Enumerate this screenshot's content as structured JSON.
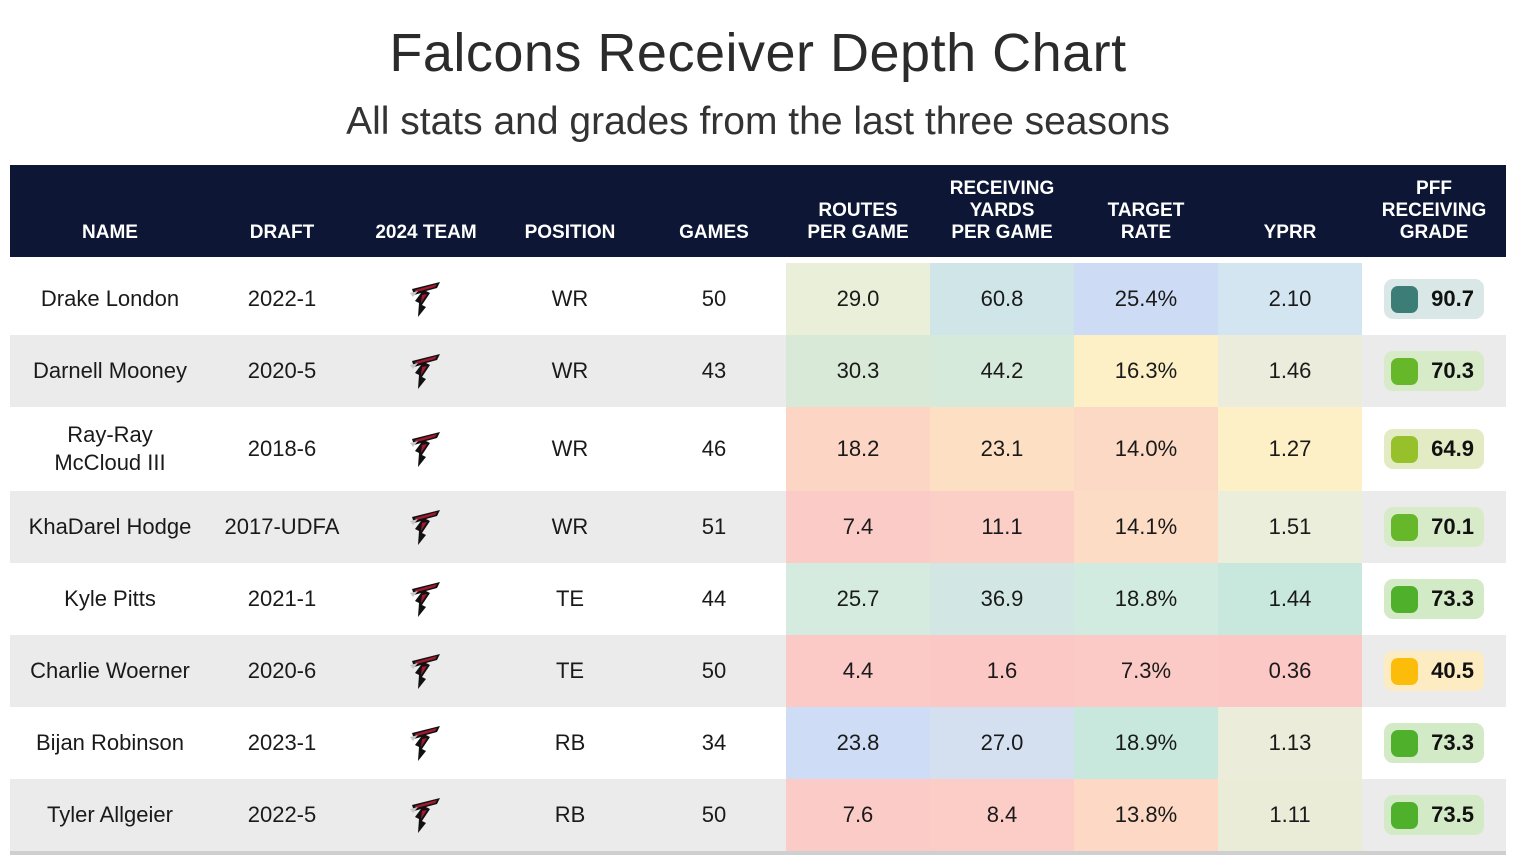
{
  "title": "Falcons Receiver Depth Chart",
  "subtitle": "All stats and grades from the last three seasons",
  "headers": {
    "name": "NAME",
    "draft": "DRAFT",
    "team": "2024 TEAM",
    "position": "POSITION",
    "games": "GAMES",
    "routes": "ROUTES\nPER GAME",
    "rec_yards": "RECEIVING\nYARDS\nPER GAME",
    "target_rate": "TARGET\nRATE",
    "yprr": "YPRR",
    "grade": "PFF\nRECEIVING\nGRADE"
  },
  "team_logo_icon": "falcons-logo-icon",
  "rows": [
    {
      "name": "Drake London",
      "draft": "2022-1",
      "position": "WR",
      "games": "50",
      "routes": "29.0",
      "rec_yards": "60.8",
      "target_rate": "25.4%",
      "yprr": "2.10",
      "grade": "90.7",
      "colors": {
        "routes": "#e9efd9",
        "rec_yards": "#cfe5e8",
        "target_rate": "#cddcf4",
        "yprr": "#d4e5f2",
        "grade_pill": "#d9e8e6",
        "grade_dot": "#3c7d78"
      }
    },
    {
      "name": "Darnell Mooney",
      "draft": "2020-5",
      "position": "WR",
      "games": "43",
      "routes": "30.3",
      "rec_yards": "44.2",
      "target_rate": "16.3%",
      "yprr": "1.46",
      "grade": "70.3",
      "colors": {
        "routes": "#d8ead7",
        "rec_yards": "#d6eadb",
        "target_rate": "#fdf0c7",
        "yprr": "#ececdc",
        "grade_pill": "#d8ebc8",
        "grade_dot": "#67b72a"
      }
    },
    {
      "name": "Ray-Ray\nMcCloud III",
      "draft": "2018-6",
      "position": "WR",
      "games": "46",
      "routes": "18.2",
      "rec_yards": "23.1",
      "target_rate": "14.0%",
      "yprr": "1.27",
      "grade": "64.9",
      "colors": {
        "routes": "#fcd5c5",
        "rec_yards": "#fde0c4",
        "target_rate": "#fcd9c5",
        "yprr": "#fdf0c7",
        "grade_pill": "#e2ebc4",
        "grade_dot": "#97c12a"
      }
    },
    {
      "name": "KhaDarel Hodge",
      "draft": "2017-UDFA",
      "position": "WR",
      "games": "51",
      "routes": "7.4",
      "rec_yards": "11.1",
      "target_rate": "14.1%",
      "yprr": "1.51",
      "grade": "70.1",
      "colors": {
        "routes": "#fbcbc7",
        "rec_yards": "#fbcfc6",
        "target_rate": "#fddcc5",
        "yprr": "#eaeedb",
        "grade_pill": "#d8ebc8",
        "grade_dot": "#67b72a"
      }
    },
    {
      "name": "Kyle Pitts",
      "draft": "2021-1",
      "position": "TE",
      "games": "44",
      "routes": "25.7",
      "rec_yards": "36.9",
      "target_rate": "18.8%",
      "yprr": "1.44",
      "grade": "73.3",
      "colors": {
        "routes": "#d6ebdf",
        "rec_yards": "#d2e7e4",
        "target_rate": "#d2ebe1",
        "yprr": "#c9e8dd",
        "grade_pill": "#d3eac6",
        "grade_dot": "#4fb12b"
      }
    },
    {
      "name": "Charlie Woerner",
      "draft": "2020-6",
      "position": "TE",
      "games": "50",
      "routes": "4.4",
      "rec_yards": "1.6",
      "target_rate": "7.3%",
      "yprr": "0.36",
      "grade": "40.5",
      "colors": {
        "routes": "#fbc9c6",
        "rec_yards": "#fbc8c6",
        "target_rate": "#fbc9c6",
        "yprr": "#fbc8c6",
        "grade_pill": "#fdebc1",
        "grade_dot": "#fbbd09"
      }
    },
    {
      "name": "Bijan Robinson",
      "draft": "2023-1",
      "position": "RB",
      "games": "34",
      "routes": "23.8",
      "rec_yards": "27.0",
      "target_rate": "18.9%",
      "yprr": "1.13",
      "grade": "73.3",
      "colors": {
        "routes": "#cfdcf6",
        "rec_yards": "#d4dff0",
        "target_rate": "#c8e8dd",
        "yprr": "#ebecd9",
        "grade_pill": "#d3eac6",
        "grade_dot": "#4fb12b"
      }
    },
    {
      "name": "Tyler Allgeier",
      "draft": "2022-5",
      "position": "RB",
      "games": "50",
      "routes": "7.6",
      "rec_yards": "8.4",
      "target_rate": "13.8%",
      "yprr": "1.11",
      "grade": "73.5",
      "colors": {
        "routes": "#fbcbc7",
        "rec_yards": "#fbcdc6",
        "target_rate": "#fdd8c5",
        "yprr": "#eaecd8",
        "grade_pill": "#d3eac6",
        "grade_dot": "#4fb12b"
      }
    }
  ]
}
